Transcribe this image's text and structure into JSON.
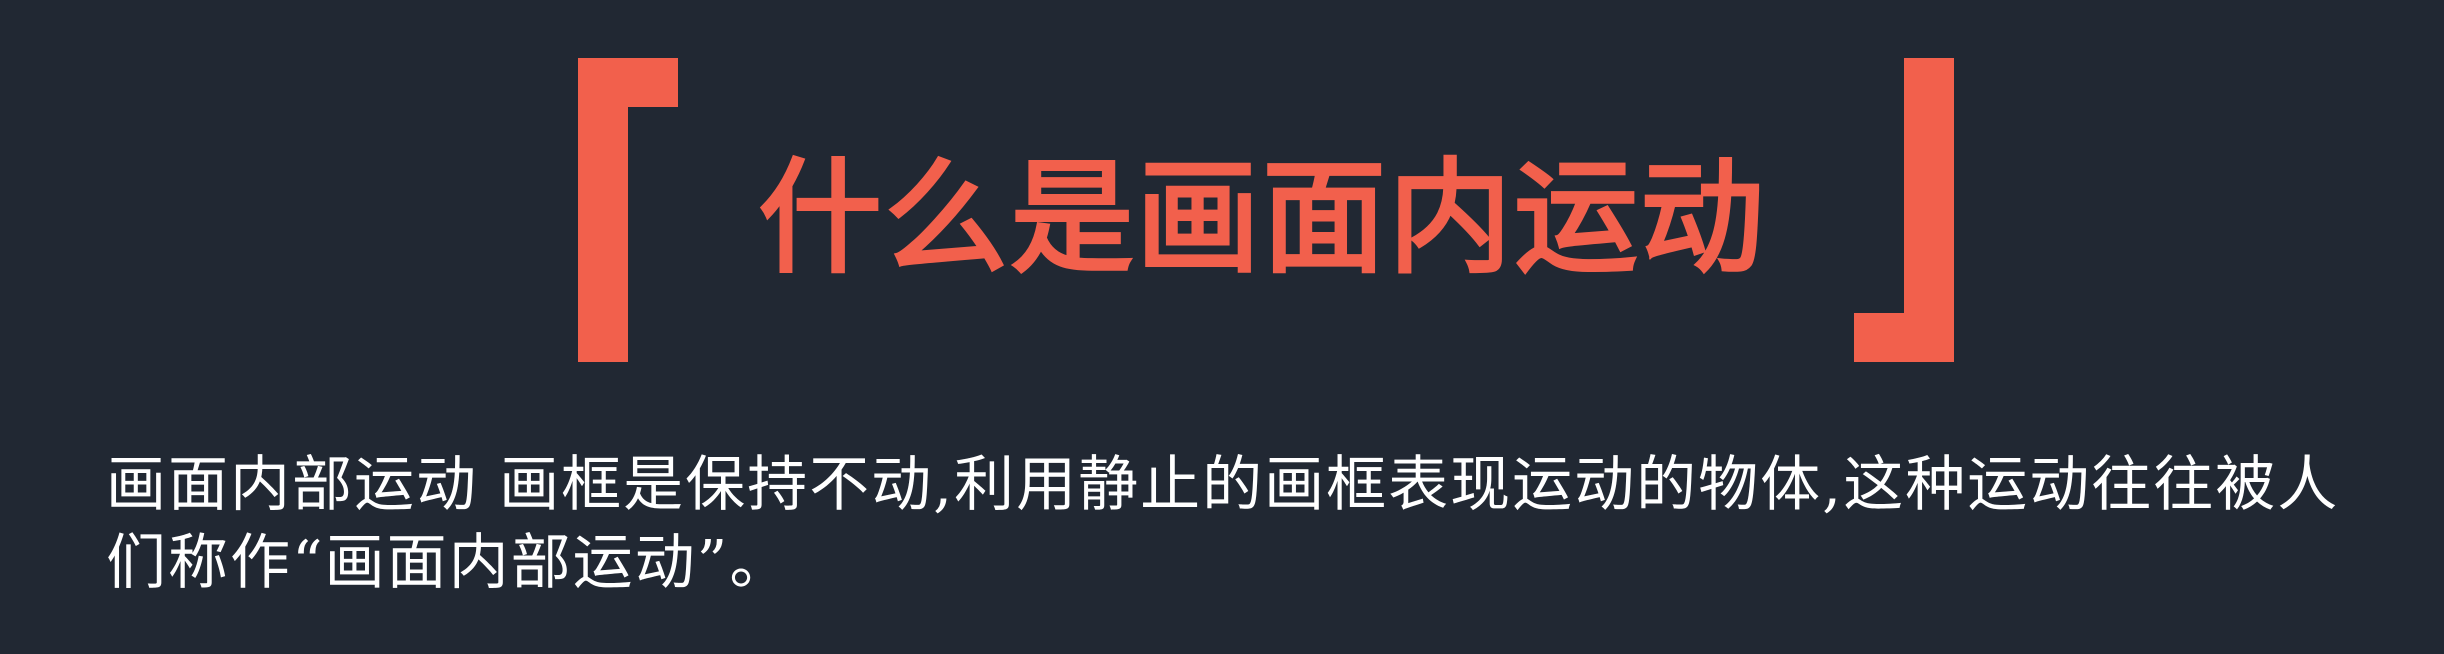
{
  "slide": {
    "title": "什么是画面内运动",
    "description": "画面内部运动 画框是保持不动,利用静止的画框表现运动的物体,这种运动往往被人们称作“画面内部运动”。"
  },
  "colors": {
    "background": "#212833",
    "accent": "#F2604C",
    "text": "#FFFFFF"
  }
}
